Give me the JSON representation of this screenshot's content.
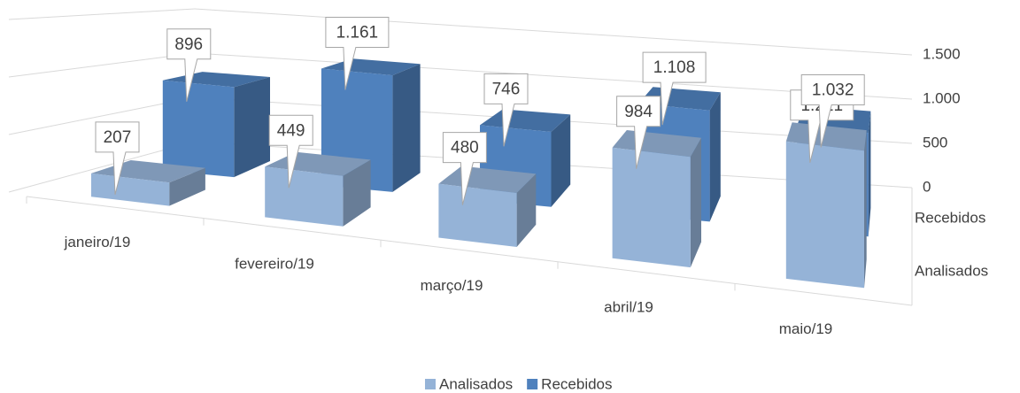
{
  "chart_data": {
    "type": "bar3d",
    "categories": [
      "janeiro/19",
      "fevereiro/19",
      "março/19",
      "abril/19",
      "maio/19"
    ],
    "series": [
      {
        "name": "Analisados",
        "color": "#95b3d7",
        "values": [
          207,
          449,
          480,
          984,
          1221
        ],
        "value_labels": [
          "207",
          "449",
          "480",
          "984",
          "1.221"
        ]
      },
      {
        "name": "Recebidos",
        "color": "#4f81bd",
        "values": [
          896,
          1161,
          746,
          1108,
          1032
        ],
        "value_labels": [
          "896",
          "1.161",
          "746",
          "1.108",
          "1.032"
        ]
      }
    ],
    "ylim": [
      0,
      1500
    ],
    "yticks": [
      0,
      500,
      {
        "value": 1000,
        "label": "1.000"
      },
      {
        "value": 1500,
        "label": "1.500"
      }
    ],
    "grid": true,
    "legend": "bottom"
  }
}
